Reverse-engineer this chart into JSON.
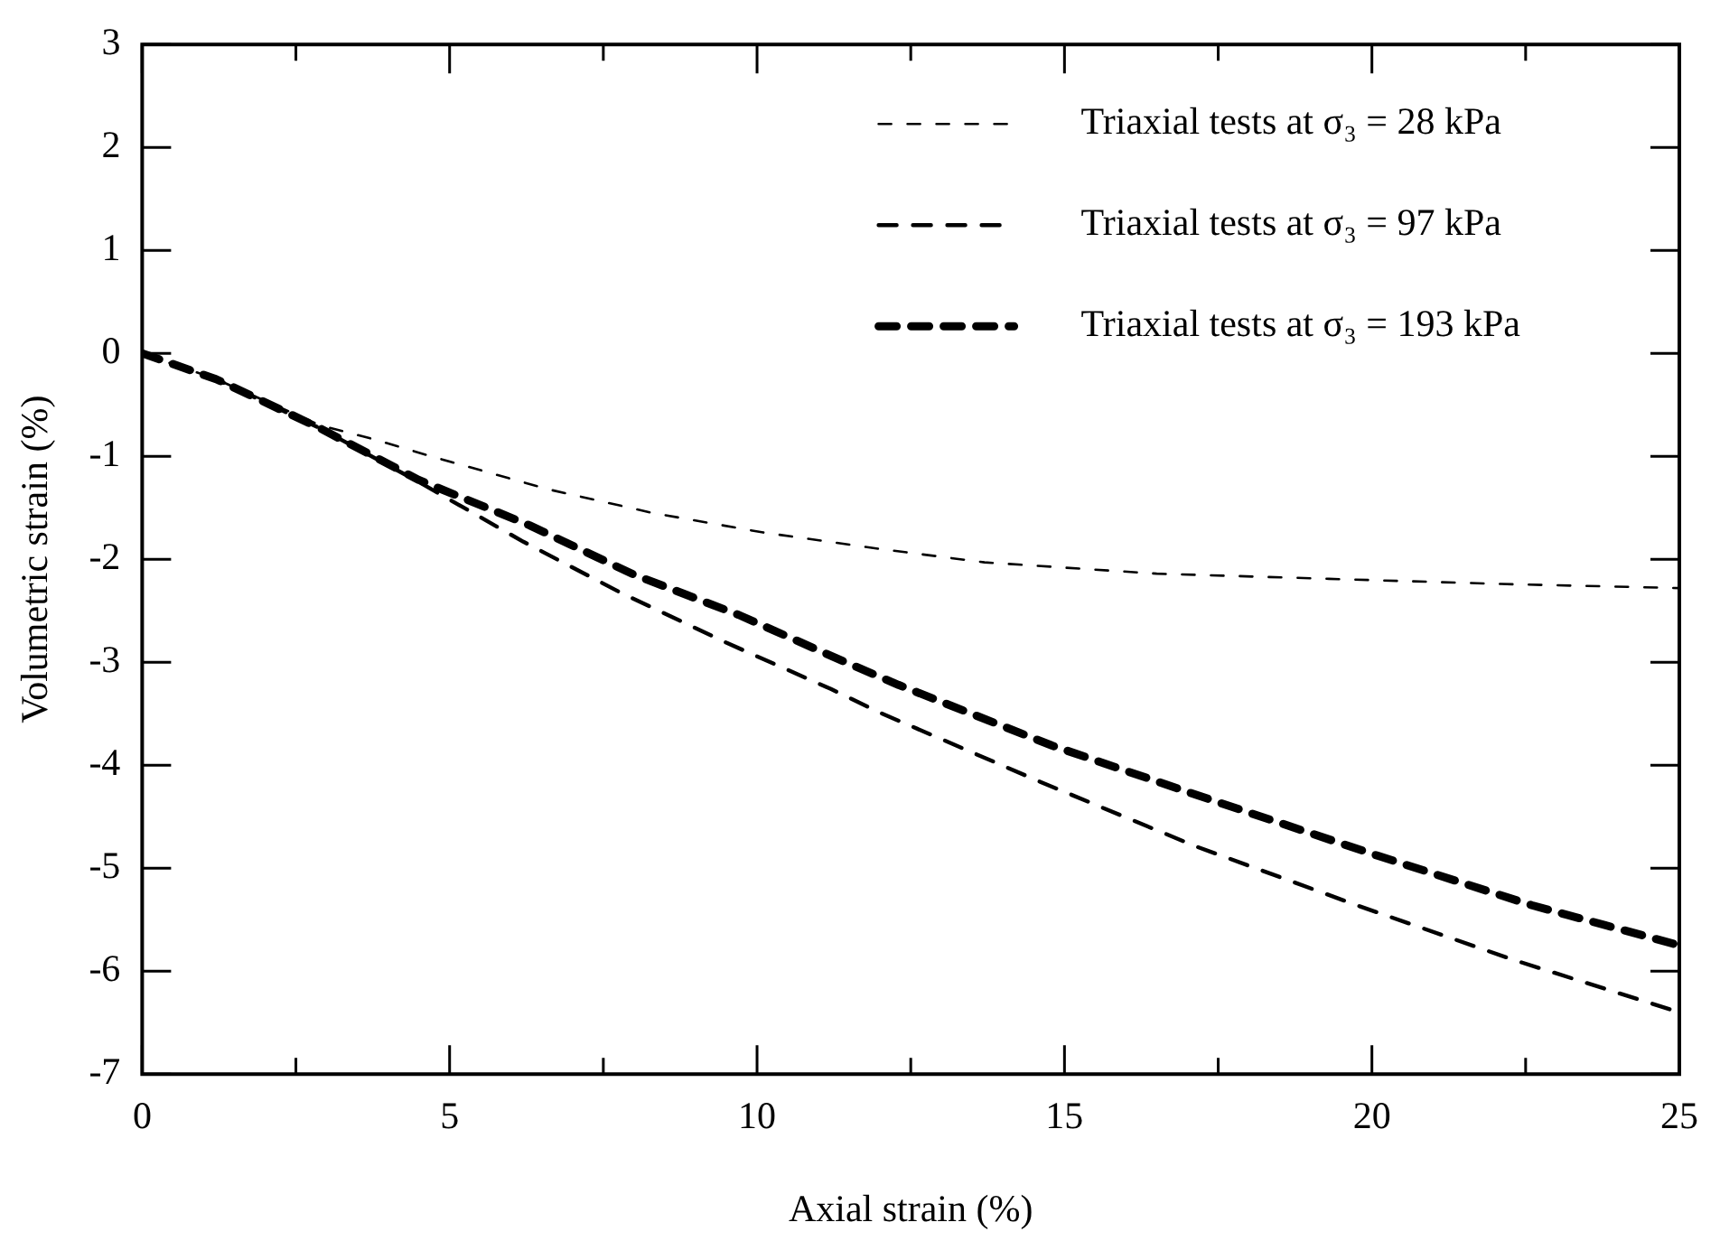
{
  "chart_data": {
    "type": "line",
    "xlabel": "Axial strain (%)",
    "ylabel": "Volumetric strain (%)",
    "xlim": [
      0,
      25
    ],
    "xticks": [
      0,
      {
        "value": 2.5,
        "label": null
      },
      5,
      {
        "value": 7.5,
        "label": null
      },
      10,
      {
        "value": 12.5,
        "label": null
      },
      15,
      {
        "value": 17.5,
        "label": null
      },
      20,
      {
        "value": 22.5,
        "label": null
      },
      25
    ],
    "ylim": [
      -7,
      3
    ],
    "yticks": [
      -7,
      -6,
      -5,
      -4,
      -3,
      -2,
      -1,
      0,
      1,
      2,
      3
    ],
    "grid": false,
    "legend": "top right",
    "marker": "none",
    "line_style": "dashed",
    "series": [
      {
        "name": "Triaxial tests at σ₃ = 28 kPa",
        "color": "#000000",
        "x": [
          0,
          1.2,
          2.9,
          3.8,
          4.7,
          6.6,
          8.3,
          10.1,
          12,
          13.7,
          16.5,
          19.3,
          22.1,
          25
        ],
        "values": [
          0,
          -0.25,
          -0.7,
          -0.84,
          -1.0,
          -1.32,
          -1.55,
          -1.74,
          -1.9,
          -2.03,
          -2.14,
          -2.19,
          -2.24,
          -2.28
        ]
      },
      {
        "name": "Triaxial tests at σ₃ = 97 kPa",
        "color": "#000000",
        "x": [
          0,
          1.2,
          2.9,
          4.5,
          6.2,
          7.8,
          9.5,
          11.2,
          12,
          14.6,
          17.1,
          19.8,
          22.3,
          25
        ],
        "values": [
          0,
          -0.25,
          -0.73,
          -1.25,
          -1.83,
          -2.33,
          -2.81,
          -3.26,
          -3.49,
          -4.16,
          -4.78,
          -5.37,
          -5.89,
          -6.4
        ]
      },
      {
        "name": "Triaxial tests at σ₃ = 193 kPa",
        "color": "#000000",
        "x": [
          0,
          1.2,
          2.9,
          4.5,
          6.3,
          8,
          9.7,
          11.4,
          12.3,
          14.8,
          17.4,
          20.1,
          22.6,
          25
        ],
        "values": [
          0,
          -0.25,
          -0.73,
          -1.23,
          -1.67,
          -2.15,
          -2.54,
          -2.99,
          -3.22,
          -3.81,
          -4.34,
          -4.88,
          -5.36,
          -5.75
        ]
      }
    ]
  }
}
